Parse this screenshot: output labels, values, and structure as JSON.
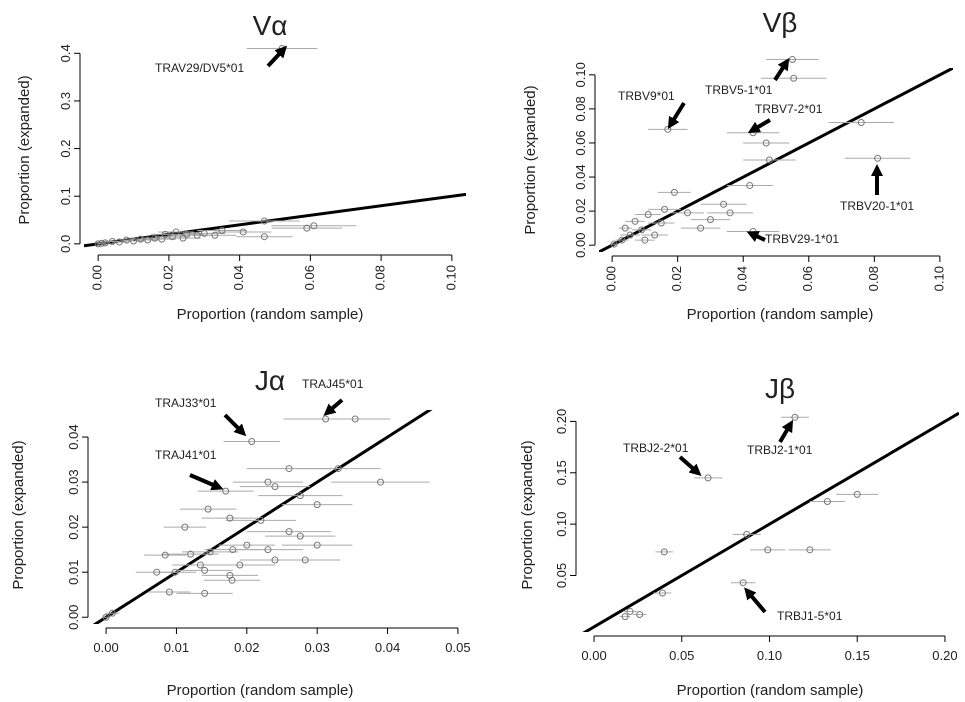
{
  "chart_data": [
    {
      "type": "scatter",
      "title": "Vα",
      "x_label": "Proportion (random sample)",
      "y_label": "Proportion (expanded)",
      "xlim": [
        -0.004,
        0.104
      ],
      "ylim": [
        -0.015,
        0.43
      ],
      "xticks": [
        {
          "value": 0,
          "label": "0.00"
        },
        0.02,
        0.04,
        0.06,
        0.08,
        {
          "value": 0.1,
          "label": "0.10"
        }
      ],
      "yticks": [
        {
          "value": 0,
          "label": "0.0"
        },
        0.1,
        0.2,
        0.3,
        0.4
      ],
      "reference_line": {
        "slope": 1,
        "intercept": 0
      },
      "x": [
        0.052,
        0.047,
        0.061,
        0.059,
        0.047,
        0.041,
        0.035,
        0.03,
        0.028,
        0.025,
        0.022,
        0.021,
        0.019,
        0.018,
        0.016,
        0.014,
        0.012,
        0.01,
        0.008,
        0.006,
        0.004,
        0.002,
        0.001,
        0.0,
        0.024,
        0.033
      ],
      "values": [
        0.41,
        0.048,
        0.038,
        0.033,
        0.015,
        0.025,
        0.028,
        0.022,
        0.018,
        0.02,
        0.025,
        0.015,
        0.02,
        0.01,
        0.012,
        0.008,
        0.01,
        0.006,
        0.008,
        0.004,
        0.005,
        0.002,
        0.001,
        0.0,
        0.012,
        0.018
      ],
      "xerr": [
        0.01,
        0.01,
        0.012,
        0.01,
        0.008,
        0.008,
        0.007,
        0.006,
        0.006,
        0.005,
        0.005,
        0.005,
        0.004,
        0.004,
        0.004,
        0.003,
        0.003,
        0.003,
        0.002,
        0.002,
        0.002,
        0.001,
        0.001,
        0.0005,
        0.005,
        0.006
      ],
      "annotations": [
        "TRAV29/DV5*01"
      ]
    },
    {
      "type": "scatter",
      "title": "Vβ",
      "x_label": "Proportion (random sample)",
      "y_label": "Proportion (expanded)",
      "xlim": [
        -0.004,
        0.104
      ],
      "ylim": [
        -0.004,
        0.104
      ],
      "xticks": [
        {
          "value": 0,
          "label": "0.00"
        },
        0.02,
        0.04,
        0.06,
        0.08,
        {
          "value": 0.1,
          "label": "0.10"
        }
      ],
      "yticks": [
        {
          "value": 0,
          "label": "0.00"
        },
        0.02,
        0.04,
        0.06,
        0.08,
        {
          "value": 0.1,
          "label": "0.10"
        }
      ],
      "reference_line": {
        "slope": 1,
        "intercept": 0
      },
      "x": [
        0.055,
        0.0554,
        0.017,
        0.043,
        0.047,
        0.048,
        0.076,
        0.081,
        0.042,
        0.019,
        0.043,
        0.034,
        0.036,
        0.03,
        0.027,
        0.023,
        0.016,
        0.011,
        0.015,
        0.009,
        0.0055,
        0.003,
        0.0006,
        0.01,
        0.013,
        0.004,
        0.007
      ],
      "values": [
        0.109,
        0.098,
        0.068,
        0.066,
        0.06,
        0.05,
        0.072,
        0.051,
        0.035,
        0.031,
        0.008,
        0.024,
        0.019,
        0.015,
        0.01,
        0.019,
        0.021,
        0.018,
        0.013,
        0.009,
        0.006,
        0.003,
        0.0006,
        0.003,
        0.006,
        0.01,
        0.014
      ],
      "xerr": [
        0.008,
        0.01,
        0.006,
        0.008,
        0.007,
        0.008,
        0.01,
        0.01,
        0.007,
        0.005,
        0.008,
        0.007,
        0.007,
        0.006,
        0.006,
        0.005,
        0.005,
        0.004,
        0.004,
        0.003,
        0.003,
        0.002,
        0.001,
        0.003,
        0.004,
        0.002,
        0.003
      ],
      "annotations": [
        "TRBV9*01",
        "TRBV5-1*01",
        "TRBV7-2*01",
        "TRBV20-1*01",
        "TRBV29-1*01"
      ]
    },
    {
      "type": "scatter",
      "title": "Jα",
      "x_label": "Proportion (random sample)",
      "y_label": "Proportion (expanded)",
      "xlim": [
        -0.002,
        0.052
      ],
      "ylim": [
        -0.0015,
        0.046
      ],
      "xticks": [
        {
          "value": 0,
          "label": "0.00"
        },
        0.01,
        0.02,
        0.03,
        0.04,
        0.05
      ],
      "yticks": [
        {
          "value": 0,
          "label": "0.00"
        },
        0.01,
        0.02,
        0.03,
        0.04
      ],
      "reference_line": {
        "slope": 1,
        "intercept": 0
      },
      "x": [
        0.0207,
        0.0312,
        0.0354,
        0.017,
        0.039,
        0.033,
        0.026,
        0.023,
        0.024,
        0.0276,
        0.03,
        0.0145,
        0.0112,
        0.0176,
        0.022,
        0.026,
        0.03,
        0.0276,
        0.023,
        0.02,
        0.018,
        0.0148,
        0.012,
        0.0084,
        0.0134,
        0.019,
        0.024,
        0.0283,
        0.0176,
        0.014,
        0.0098,
        0.0072,
        0.009,
        0.014,
        0.0179,
        0.0009,
        0.0
      ],
      "values": [
        0.039,
        0.044,
        0.044,
        0.028,
        0.03,
        0.033,
        0.033,
        0.03,
        0.029,
        0.027,
        0.025,
        0.024,
        0.02,
        0.022,
        0.0215,
        0.019,
        0.016,
        0.018,
        0.015,
        0.016,
        0.015,
        0.0145,
        0.014,
        0.0138,
        0.0116,
        0.0116,
        0.0127,
        0.0127,
        0.0093,
        0.0104,
        0.01,
        0.01,
        0.0056,
        0.0053,
        0.0082,
        0.0009,
        0.0
      ],
      "xerr": [
        0.004,
        0.006,
        0.005,
        0.004,
        0.007,
        0.006,
        0.006,
        0.005,
        0.005,
        0.006,
        0.005,
        0.004,
        0.003,
        0.004,
        0.005,
        0.006,
        0.005,
        0.005,
        0.005,
        0.004,
        0.004,
        0.004,
        0.004,
        0.003,
        0.004,
        0.005,
        0.005,
        0.005,
        0.004,
        0.004,
        0.003,
        0.003,
        0.003,
        0.004,
        0.004,
        0.001,
        0.0005
      ],
      "annotations": [
        "TRAJ33*01",
        "TRAJ45*01",
        "TRAJ41*01"
      ]
    },
    {
      "type": "scatter",
      "title": "Jβ",
      "x_label": "Proportion (random sample)",
      "y_label": "Proportion (expanded)",
      "xlim": [
        -0.008,
        0.208
      ],
      "ylim": [
        -0.005,
        0.215
      ],
      "xticks": [
        {
          "value": 0,
          "label": "0.00"
        },
        0.05,
        {
          "value": 0.1,
          "label": "0.10"
        },
        0.15,
        {
          "value": 0.2,
          "label": "0.20"
        }
      ],
      "yticks": [
        0.05,
        {
          "value": 0.1,
          "label": "0.10"
        },
        0.15,
        {
          "value": 0.2,
          "label": "0.20"
        }
      ],
      "reference_line": {
        "slope": 1,
        "intercept": 0
      },
      "x": [
        0.1145,
        0.065,
        0.15,
        0.133,
        0.087,
        0.099,
        0.123,
        0.04,
        0.085,
        0.039,
        0.0205,
        0.0177,
        0.026
      ],
      "values": [
        0.204,
        0.145,
        0.129,
        0.122,
        0.09,
        0.075,
        0.075,
        0.073,
        0.043,
        0.033,
        0.015,
        0.01,
        0.012
      ],
      "xerr": [
        0.008,
        0.008,
        0.012,
        0.01,
        0.008,
        0.01,
        0.012,
        0.005,
        0.007,
        0.005,
        0.004,
        0.003,
        0.004
      ],
      "annotations": [
        "TRBJ2-2*01",
        "TRBJ2-1*01",
        "TRBJ1-5*01"
      ]
    }
  ]
}
